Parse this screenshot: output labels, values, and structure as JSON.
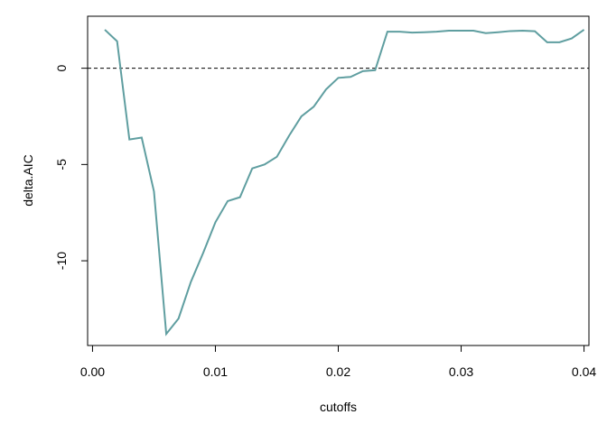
{
  "chart_data": {
    "type": "line",
    "title": "",
    "xlabel": "cutoffs",
    "ylabel": "delta.AIC",
    "xlim": [
      -0.0004,
      0.0404
    ],
    "ylim": [
      -14.4,
      2.7
    ],
    "x_ticks": [
      0.0,
      0.01,
      0.02,
      0.03,
      0.04
    ],
    "x_tick_labels": [
      "0.00",
      "0.01",
      "0.02",
      "0.03",
      "0.04"
    ],
    "y_ticks": [
      0,
      -5,
      -10
    ],
    "y_tick_labels": [
      "0",
      "-5",
      "-10"
    ],
    "grid": false,
    "legend": "none",
    "reference_line": {
      "y": 0,
      "style": "dashed",
      "color": "#000000"
    },
    "series": [
      {
        "color": "#5f9ea0",
        "x": [
          0.001,
          0.002,
          0.003,
          0.004,
          0.005,
          0.006,
          0.007,
          0.008,
          0.009,
          0.01,
          0.011,
          0.012,
          0.013,
          0.014,
          0.015,
          0.016,
          0.017,
          0.018,
          0.019,
          0.02,
          0.021,
          0.022,
          0.023,
          0.024,
          0.025,
          0.026,
          0.027,
          0.028,
          0.029,
          0.03,
          0.031,
          0.032,
          0.033,
          0.034,
          0.035,
          0.036,
          0.037,
          0.038,
          0.039,
          0.04
        ],
        "y": [
          2.0,
          1.4,
          -3.7,
          -3.6,
          -6.4,
          -13.8,
          -13.0,
          -11.1,
          -9.6,
          -8.0,
          -6.9,
          -6.7,
          -5.2,
          -5.0,
          -4.6,
          -3.5,
          -2.5,
          -2.0,
          -1.1,
          -0.5,
          -0.45,
          -0.15,
          -0.1,
          1.9,
          1.9,
          1.85,
          1.87,
          1.9,
          1.95,
          1.95,
          1.95,
          1.82,
          1.87,
          1.93,
          1.95,
          1.92,
          1.35,
          1.35,
          1.55,
          2.0
        ]
      }
    ]
  }
}
